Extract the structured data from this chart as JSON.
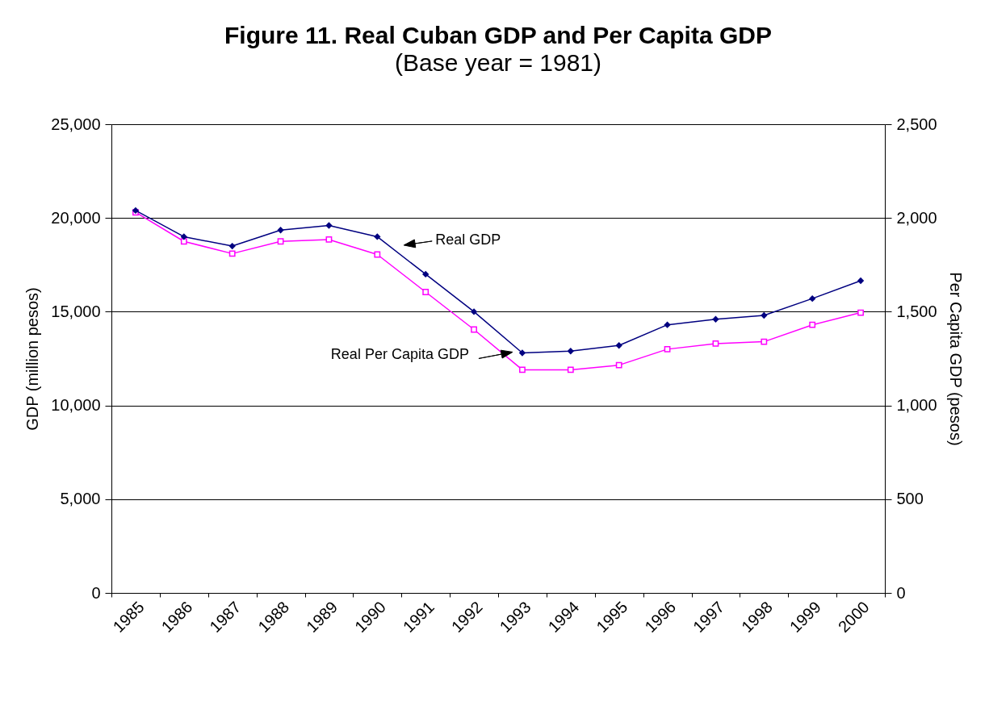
{
  "chart_data": {
    "type": "line",
    "title": "Figure 11.  Real Cuban GDP and Per Capita GDP",
    "subtitle": "(Base year = 1981)",
    "ylabel": "GDP (million pesos)",
    "y2label": "Per Capita GDP (pesos)",
    "categories": [
      "1985",
      "1986",
      "1987",
      "1988",
      "1989",
      "1990",
      "1991",
      "1992",
      "1993",
      "1994",
      "1995",
      "1996",
      "1997",
      "1998",
      "1999",
      "2000"
    ],
    "series": [
      {
        "name": "Real GDP",
        "color": "#000080",
        "marker": "diamond",
        "values": [
          20400,
          19000,
          18500,
          19350,
          19600,
          19000,
          17000,
          15000,
          12800,
          12900,
          13200,
          14300,
          14600,
          14800,
          15700,
          16650
        ]
      },
      {
        "name": "Real Per Capita GDP",
        "color": "#ff00ff",
        "marker": "square",
        "axis": "y2",
        "values": [
          2030,
          1875,
          1810,
          1875,
          1885,
          1805,
          1605,
          1405,
          1190,
          1190,
          1215,
          1300,
          1330,
          1340,
          1430,
          1495
        ]
      }
    ],
    "ylim": [
      0,
      25000
    ],
    "yticks": [
      0,
      {
        "value": 5000,
        "label": "5,000"
      },
      {
        "value": 10000,
        "label": "10,000"
      },
      {
        "value": 15000,
        "label": "15,000"
      },
      {
        "value": 20000,
        "label": "20,000"
      },
      {
        "value": 25000,
        "label": "25,000"
      }
    ],
    "y2lim": [
      0,
      2500
    ],
    "y2ticks": [
      0,
      500,
      {
        "value": 1000,
        "label": "1,000"
      },
      {
        "value": 1500,
        "label": "1,500"
      },
      {
        "value": 2000,
        "label": "2,000"
      },
      {
        "value": 2500,
        "label": "2,500"
      }
    ],
    "grid": "y"
  }
}
